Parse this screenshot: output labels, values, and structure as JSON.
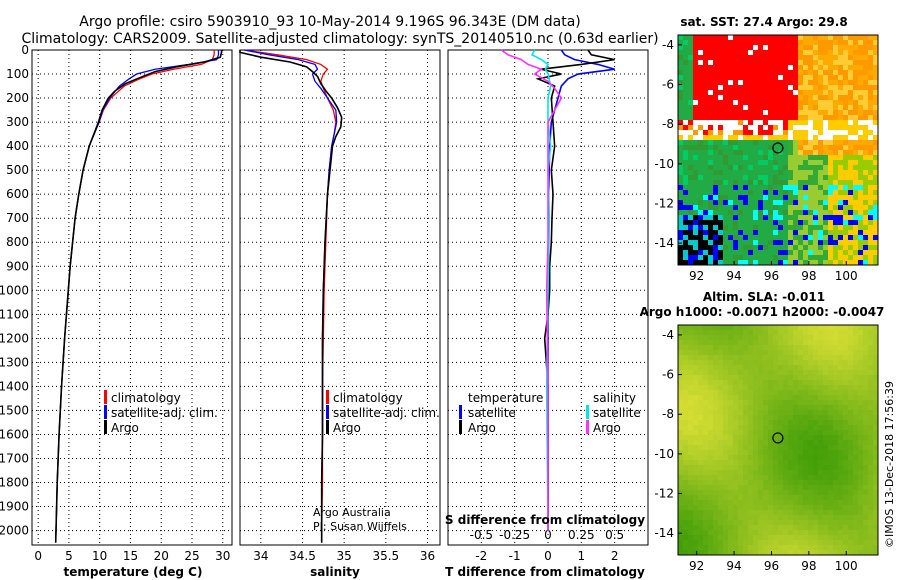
{
  "header": {
    "title_line1": "Argo profile: csiro 5903910_93 10-May-2014 9.196S 96.343E (DM data)",
    "title_line2": "Climatology: CARS2009. Satellite-adjusted climatology: synTS_20140510.nc (0.63d earlier)"
  },
  "colors": {
    "climatology": "#ff0000",
    "satellite": "#0000ff",
    "argo": "#000000",
    "sal_satellite": "#00e5e5",
    "sal_argo": "#ff33ff",
    "map_land": "#ff0000"
  },
  "chart_data": [
    {
      "type": "line",
      "title": "",
      "xlabel": "temperature (deg C)",
      "ylabel": "",
      "xlim": [
        -1,
        31.5
      ],
      "ylim": [
        2060,
        0
      ],
      "xticks": [
        0,
        5,
        10,
        15,
        20,
        25,
        30
      ],
      "yticks": [
        0,
        100,
        200,
        300,
        400,
        500,
        600,
        700,
        800,
        900,
        1000,
        1100,
        1200,
        1300,
        1400,
        1500,
        1600,
        1700,
        1800,
        1900,
        2000
      ],
      "legend": [
        "climatology",
        "satellite-adj. clim.",
        "Argo"
      ],
      "series": [
        {
          "name": "climatology",
          "depth": [
            0,
            20,
            40,
            60,
            80,
            100,
            120,
            150,
            200,
            250,
            300,
            400,
            500,
            600,
            700,
            800,
            900,
            1000,
            1200,
            1400,
            1600,
            1800,
            2000,
            2050
          ],
          "values": [
            28.6,
            28.6,
            28.3,
            26.5,
            22.0,
            18.5,
            16.5,
            14.0,
            11.8,
            10.6,
            9.9,
            8.3,
            7.3,
            6.6,
            6.0,
            5.6,
            5.2,
            4.9,
            4.3,
            3.8,
            3.4,
            3.1,
            2.9,
            2.85
          ]
        },
        {
          "name": "satellite-adj. clim.",
          "depth": [
            0,
            20,
            40,
            60,
            80,
            100,
            120,
            150,
            200,
            250,
            300,
            400,
            500,
            600,
            700,
            800,
            900,
            1000,
            1200,
            1400,
            1600,
            1800,
            2000,
            2050
          ],
          "values": [
            29.3,
            29.3,
            29.0,
            24.5,
            19.0,
            16.0,
            14.8,
            13.2,
            11.6,
            10.5,
            9.9,
            8.3,
            7.3,
            6.6,
            6.0,
            5.6,
            5.2,
            4.9,
            4.3,
            3.8,
            3.4,
            3.1,
            2.9,
            2.85
          ]
        },
        {
          "name": "Argo",
          "depth": [
            0,
            10,
            30,
            50,
            70,
            90,
            110,
            140,
            170,
            200,
            250,
            300,
            400,
            500,
            600,
            700,
            800,
            900,
            1000,
            1200,
            1400,
            1600,
            1800,
            2000,
            2050
          ],
          "values": [
            29.8,
            29.8,
            29.6,
            27.0,
            22.5,
            19.0,
            17.0,
            14.2,
            12.5,
            11.4,
            10.4,
            9.8,
            8.3,
            7.3,
            6.6,
            6.0,
            5.6,
            5.2,
            4.9,
            4.3,
            3.8,
            3.4,
            3.1,
            2.9,
            2.85
          ]
        }
      ]
    },
    {
      "type": "line",
      "title": "",
      "xlabel": "salinity",
      "ylabel": "",
      "xlim": [
        33.75,
        36.15
      ],
      "ylim": [
        2060,
        0
      ],
      "xticks": [
        34,
        34.5,
        35,
        35.5,
        36
      ],
      "xtick_labels": [
        "34",
        "34.5",
        "35",
        "35.5",
        "36"
      ],
      "legend": [
        "climatology",
        "satellite-adj. clim.",
        "Argo"
      ],
      "annotations": [
        "Argo Australia",
        "PI: Susan Wijffels"
      ],
      "series": [
        {
          "name": "climatology",
          "depth": [
            0,
            20,
            40,
            60,
            80,
            100,
            130,
            160,
            200,
            250,
            300,
            350,
            400,
            500,
            600,
            800,
            1000,
            1200,
            1400,
            1600,
            1800,
            2000,
            2050
          ],
          "values": [
            33.8,
            34.2,
            34.55,
            34.72,
            34.8,
            34.75,
            34.72,
            34.75,
            34.8,
            34.87,
            34.9,
            34.88,
            34.85,
            34.82,
            34.8,
            34.78,
            34.76,
            34.75,
            34.74,
            34.74,
            34.74,
            34.73,
            34.73
          ]
        },
        {
          "name": "satellite-adj. clim.",
          "depth": [
            0,
            20,
            40,
            60,
            80,
            100,
            130,
            160,
            200,
            250,
            300,
            350,
            400,
            500,
            600,
            800,
            1000,
            1200,
            1400,
            1600,
            1800,
            2000,
            2050
          ],
          "values": [
            33.8,
            34.1,
            34.45,
            34.65,
            34.68,
            34.62,
            34.65,
            34.72,
            34.8,
            34.9,
            34.91,
            34.88,
            34.85,
            34.82,
            34.8,
            34.77,
            34.75,
            34.74,
            34.74,
            34.74,
            34.73,
            34.73,
            34.73
          ]
        },
        {
          "name": "Argo",
          "depth": [
            0,
            10,
            30,
            50,
            70,
            90,
            110,
            140,
            170,
            200,
            240,
            280,
            320,
            360,
            400,
            500,
            600,
            800,
            1000,
            1200,
            1400,
            1600,
            1800,
            2000,
            2050
          ],
          "values": [
            33.75,
            33.75,
            34.0,
            34.35,
            34.55,
            34.62,
            34.68,
            34.72,
            34.78,
            34.85,
            34.92,
            34.97,
            34.96,
            34.9,
            34.86,
            34.83,
            34.8,
            34.77,
            34.75,
            34.74,
            34.74,
            34.74,
            34.73,
            34.73,
            34.73
          ]
        }
      ]
    },
    {
      "type": "line",
      "title": "",
      "xlabel": "T difference from climatology",
      "xlabel_top": "S difference from climatology",
      "xlim": [
        -3,
        3
      ],
      "ylim": [
        2060,
        0
      ],
      "xticks": [
        -2,
        -1,
        0,
        1,
        2
      ],
      "xticks_top": [
        -0.5,
        -0.25,
        0,
        0.25,
        0.5
      ],
      "xtick_top_labels": [
        "-0.5",
        "-0.25",
        "0",
        "0.25",
        "0.5"
      ],
      "legend_temperature": [
        "temperature",
        "satellite",
        "Argo"
      ],
      "legend_salinity": [
        "salinity",
        "satellite",
        "Argo"
      ],
      "series": [
        {
          "name": "T satellite",
          "depth": [
            0,
            20,
            40,
            60,
            80,
            100,
            120,
            150,
            200,
            250,
            300,
            400,
            600,
            1000,
            2000
          ],
          "values": [
            0.4,
            0.5,
            0.8,
            1.5,
            2.0,
            0.9,
            0.6,
            0.4,
            0.3,
            0.2,
            0.1,
            0.05,
            0.02,
            0.0,
            0.0
          ]
        },
        {
          "name": "T Argo",
          "depth": [
            0,
            20,
            40,
            60,
            80,
            100,
            120,
            150,
            200,
            300,
            400,
            500,
            600,
            700,
            800,
            900,
            1000,
            1100,
            1200,
            1300,
            1400,
            1600,
            2000
          ],
          "values": [
            1.2,
            1.3,
            2.0,
            1.0,
            -0.2,
            0.4,
            -0.3,
            0.2,
            0.1,
            0.15,
            0.2,
            0.1,
            0.15,
            0.12,
            0.1,
            0.05,
            0.05,
            0.0,
            -0.1,
            -0.05,
            0.0,
            0.0,
            0.0
          ]
        },
        {
          "name": "S satellite",
          "depth": [
            0,
            20,
            40,
            60,
            80,
            100,
            150,
            200,
            300,
            400,
            500,
            700,
            1000,
            1400,
            2000
          ],
          "values": [
            -0.1,
            -0.12,
            -0.05,
            0.0,
            -0.02,
            0.0,
            0.02,
            0.0,
            0.0,
            0.02,
            0.0,
            0.01,
            0.0,
            -0.01,
            0.0
          ]
        },
        {
          "name": "S Argo",
          "depth": [
            0,
            20,
            40,
            60,
            80,
            100,
            130,
            160,
            200,
            250,
            300,
            400,
            600,
            800,
            1000,
            1400,
            2000
          ],
          "values": [
            -0.35,
            -0.3,
            -0.2,
            -0.15,
            -0.05,
            -0.1,
            0.0,
            0.05,
            0.1,
            0.05,
            0.0,
            0.0,
            0.0,
            0.0,
            -0.01,
            0.0,
            0.0
          ]
        }
      ]
    },
    {
      "type": "heatmap",
      "title": "sat. SST: 27.4 Argo: 29.8",
      "xlim": [
        91,
        101.7
      ],
      "ylim": [
        -15.1,
        -3.5
      ],
      "xticks": [
        92,
        94,
        96,
        98,
        100
      ],
      "yticks": [
        -4,
        -6,
        -8,
        -10,
        -12,
        -14
      ],
      "marker": {
        "lon": 96.343,
        "lat": -9.196
      }
    },
    {
      "type": "heatmap",
      "title": "Altim. SLA: -0.011",
      "subtitle": "Argo h1000: -0.0071 h2000: -0.0047",
      "xlim": [
        91,
        101.7
      ],
      "ylim": [
        -15.1,
        -3.5
      ],
      "xticks": [
        92,
        94,
        96,
        98,
        100
      ],
      "yticks": [
        -4,
        -6,
        -8,
        -10,
        -12,
        -14
      ],
      "marker": {
        "lon": 96.343,
        "lat": -9.196
      }
    }
  ],
  "footer": {
    "credit": "©IMOS 13-Dec-2018 17:56:39"
  }
}
